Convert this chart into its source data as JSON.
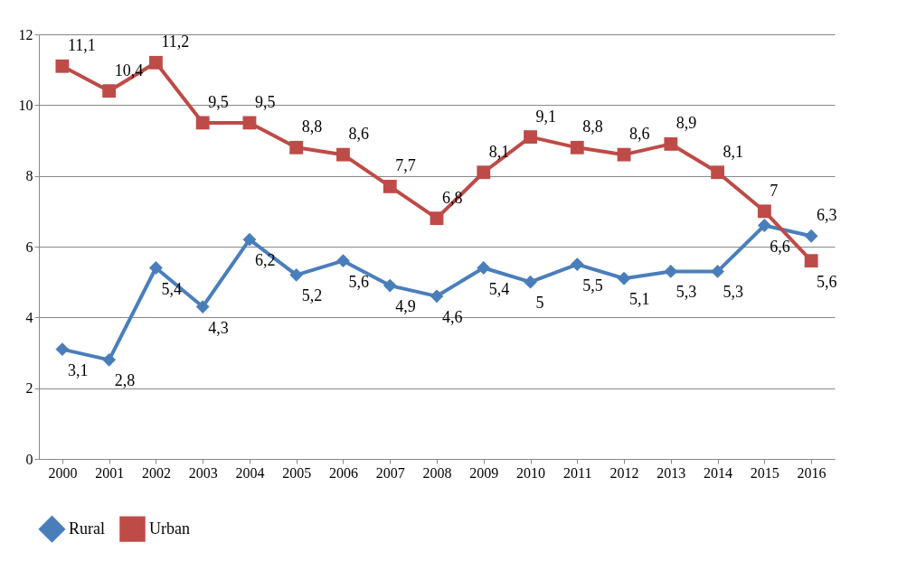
{
  "chart_data": {
    "type": "line",
    "categories": [
      "2000",
      "2001",
      "2002",
      "2003",
      "2004",
      "2005",
      "2006",
      "2007",
      "2008",
      "2009",
      "2010",
      "2011",
      "2012",
      "2013",
      "2014",
      "2015",
      "2016"
    ],
    "series": [
      {
        "name": "Rural",
        "color": "#4a7ebb",
        "marker": "diamond",
        "values": [
          3.1,
          2.8,
          5.4,
          4.3,
          6.2,
          5.2,
          5.6,
          4.9,
          4.6,
          5.4,
          5,
          5.5,
          5.1,
          5.3,
          5.3,
          6.6,
          6.3
        ],
        "value_labels": [
          "3,1",
          "2,8",
          "5,4",
          "4,3",
          "6,2",
          "5,2",
          "5,6",
          "4,9",
          "4,6",
          "5,4",
          "5",
          "5,5",
          "5,1",
          "5,3",
          "5,3",
          "6,6",
          "6,3"
        ]
      },
      {
        "name": "Urban",
        "color": "#be4b48",
        "marker": "square",
        "values": [
          11.1,
          10.4,
          11.2,
          9.5,
          9.5,
          8.8,
          8.6,
          7.7,
          6.8,
          8.1,
          9.1,
          8.8,
          8.6,
          8.9,
          8.1,
          7,
          5.6
        ],
        "value_labels": [
          "11,1",
          "10,4",
          "11,2",
          "9,5",
          "9,5",
          "8,8",
          "8,6",
          "7,7",
          "6,8",
          "8,1",
          "9,1",
          "8,8",
          "8,6",
          "8,9",
          "8,1",
          "7",
          "5,6"
        ]
      }
    ],
    "ylim": [
      0,
      12
    ],
    "yticks": [
      0,
      2,
      4,
      6,
      8,
      10,
      12
    ],
    "grid": "y",
    "legend": "bottom"
  }
}
